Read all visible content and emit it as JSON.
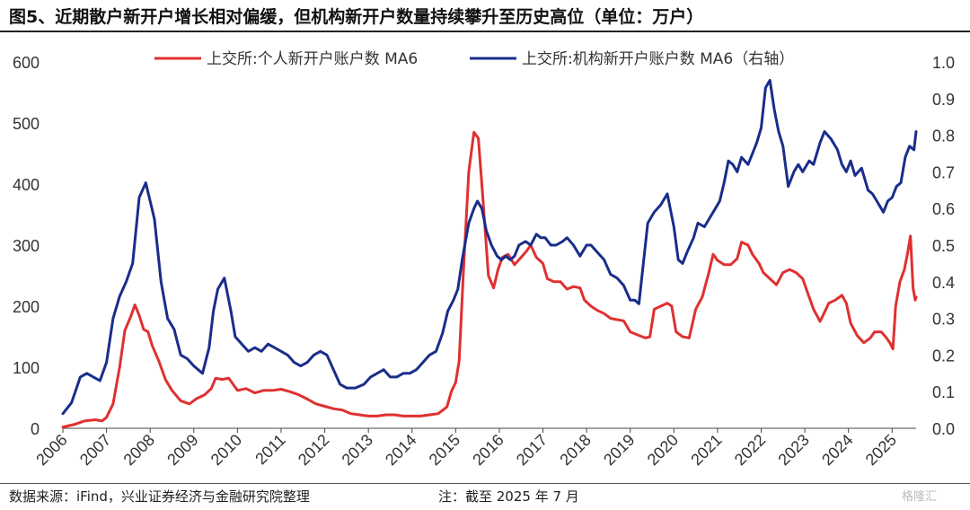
{
  "header": {
    "title": "图5、近期散户新开户增长相对偏缓，但机构新开户数量持续攀升至历史高位（单位：万户）"
  },
  "footer": {
    "source": "数据来源：iFind，兴业证券经济与金融研究院整理",
    "note": "注：截至 2025 年 7 月",
    "watermark": "格隆汇"
  },
  "colors": {
    "retail": "#e03030",
    "institution": "#1a2d8a",
    "axis": "#444444"
  },
  "chart_data": {
    "type": "line",
    "title": "",
    "xlabel": "",
    "ylabel": "",
    "x_ticks": [
      "2006",
      "2007",
      "2008",
      "2009",
      "2010",
      "2011",
      "2012",
      "2013",
      "2014",
      "2015",
      "2016",
      "2017",
      "2018",
      "2019",
      "2020",
      "2021",
      "2022",
      "2023",
      "2024",
      "2025"
    ],
    "x_range": [
      2006.0,
      2025.55
    ],
    "y_left": {
      "ticks": [
        "0",
        "100",
        "200",
        "300",
        "400",
        "500",
        "600"
      ],
      "range": [
        0,
        600
      ]
    },
    "y_right": {
      "ticks": [
        "0.0",
        "0.1",
        "0.2",
        "0.3",
        "0.4",
        "0.5",
        "0.6",
        "0.7",
        "0.8",
        "0.9",
        "1.0"
      ],
      "range": [
        0,
        1.0
      ]
    },
    "legend_position": "top",
    "series": [
      {
        "name": "上交所:个人新开户账户数 MA6",
        "axis": "left",
        "color": "#e03030",
        "points": [
          [
            2006.0,
            2
          ],
          [
            2006.25,
            6
          ],
          [
            2006.5,
            12
          ],
          [
            2006.75,
            14
          ],
          [
            2006.9,
            12
          ],
          [
            2007.0,
            18
          ],
          [
            2007.15,
            40
          ],
          [
            2007.3,
            100
          ],
          [
            2007.42,
            160
          ],
          [
            2007.55,
            182
          ],
          [
            2007.65,
            202
          ],
          [
            2007.75,
            185
          ],
          [
            2007.85,
            162
          ],
          [
            2007.95,
            158
          ],
          [
            2008.05,
            135
          ],
          [
            2008.2,
            110
          ],
          [
            2008.35,
            80
          ],
          [
            2008.5,
            62
          ],
          [
            2008.7,
            45
          ],
          [
            2008.9,
            40
          ],
          [
            2009.05,
            48
          ],
          [
            2009.25,
            55
          ],
          [
            2009.4,
            65
          ],
          [
            2009.5,
            82
          ],
          [
            2009.65,
            80
          ],
          [
            2009.8,
            82
          ],
          [
            2010.0,
            62
          ],
          [
            2010.2,
            65
          ],
          [
            2010.4,
            58
          ],
          [
            2010.6,
            62
          ],
          [
            2010.8,
            62
          ],
          [
            2011.0,
            64
          ],
          [
            2011.2,
            60
          ],
          [
            2011.4,
            55
          ],
          [
            2011.6,
            48
          ],
          [
            2011.8,
            40
          ],
          [
            2012.0,
            36
          ],
          [
            2012.2,
            32
          ],
          [
            2012.4,
            30
          ],
          [
            2012.6,
            24
          ],
          [
            2012.8,
            22
          ],
          [
            2013.0,
            20
          ],
          [
            2013.2,
            20
          ],
          [
            2013.4,
            22
          ],
          [
            2013.6,
            22
          ],
          [
            2013.8,
            20
          ],
          [
            2014.0,
            20
          ],
          [
            2014.2,
            20
          ],
          [
            2014.4,
            22
          ],
          [
            2014.6,
            24
          ],
          [
            2014.8,
            35
          ],
          [
            2014.9,
            60
          ],
          [
            2015.0,
            75
          ],
          [
            2015.08,
            110
          ],
          [
            2015.18,
            260
          ],
          [
            2015.3,
            420
          ],
          [
            2015.42,
            485
          ],
          [
            2015.52,
            475
          ],
          [
            2015.62,
            380
          ],
          [
            2015.75,
            250
          ],
          [
            2015.87,
            230
          ],
          [
            2015.97,
            260
          ],
          [
            2016.07,
            280
          ],
          [
            2016.2,
            285
          ],
          [
            2016.35,
            268
          ],
          [
            2016.5,
            280
          ],
          [
            2016.62,
            290
          ],
          [
            2016.72,
            300
          ],
          [
            2016.85,
            280
          ],
          [
            2017.0,
            270
          ],
          [
            2017.1,
            245
          ],
          [
            2017.25,
            240
          ],
          [
            2017.4,
            240
          ],
          [
            2017.55,
            228
          ],
          [
            2017.7,
            232
          ],
          [
            2017.85,
            230
          ],
          [
            2017.95,
            210
          ],
          [
            2018.1,
            200
          ],
          [
            2018.25,
            193
          ],
          [
            2018.4,
            188
          ],
          [
            2018.55,
            180
          ],
          [
            2018.7,
            178
          ],
          [
            2018.85,
            176
          ],
          [
            2019.0,
            158
          ],
          [
            2019.2,
            152
          ],
          [
            2019.35,
            148
          ],
          [
            2019.45,
            150
          ],
          [
            2019.55,
            195
          ],
          [
            2019.7,
            200
          ],
          [
            2019.85,
            205
          ],
          [
            2019.95,
            200
          ],
          [
            2020.05,
            158
          ],
          [
            2020.2,
            150
          ],
          [
            2020.35,
            148
          ],
          [
            2020.5,
            195
          ],
          [
            2020.65,
            215
          ],
          [
            2020.8,
            255
          ],
          [
            2020.9,
            285
          ],
          [
            2021.0,
            275
          ],
          [
            2021.15,
            268
          ],
          [
            2021.3,
            268
          ],
          [
            2021.45,
            278
          ],
          [
            2021.55,
            305
          ],
          [
            2021.7,
            300
          ],
          [
            2021.8,
            285
          ],
          [
            2021.95,
            270
          ],
          [
            2022.05,
            255
          ],
          [
            2022.2,
            245
          ],
          [
            2022.35,
            235
          ],
          [
            2022.5,
            255
          ],
          [
            2022.65,
            260
          ],
          [
            2022.8,
            255
          ],
          [
            2022.95,
            245
          ],
          [
            2023.05,
            225
          ],
          [
            2023.2,
            195
          ],
          [
            2023.35,
            175
          ],
          [
            2023.45,
            190
          ],
          [
            2023.55,
            205
          ],
          [
            2023.7,
            210
          ],
          [
            2023.85,
            218
          ],
          [
            2023.95,
            205
          ],
          [
            2024.05,
            172
          ],
          [
            2024.2,
            152
          ],
          [
            2024.35,
            140
          ],
          [
            2024.5,
            148
          ],
          [
            2024.6,
            158
          ],
          [
            2024.75,
            158
          ],
          [
            2024.85,
            150
          ],
          [
            2024.95,
            140
          ],
          [
            2025.02,
            130
          ],
          [
            2025.08,
            200
          ],
          [
            2025.18,
            240
          ],
          [
            2025.28,
            260
          ],
          [
            2025.35,
            285
          ],
          [
            2025.42,
            315
          ],
          [
            2025.48,
            230
          ],
          [
            2025.53,
            210
          ],
          [
            2025.55,
            215
          ]
        ]
      },
      {
        "name": "上交所:机构新开户账户数 MA6（右轴）",
        "axis": "right",
        "color": "#1a2d8a",
        "points": [
          [
            2006.0,
            0.04
          ],
          [
            2006.2,
            0.07
          ],
          [
            2006.4,
            0.14
          ],
          [
            2006.55,
            0.15
          ],
          [
            2006.7,
            0.14
          ],
          [
            2006.85,
            0.13
          ],
          [
            2007.0,
            0.18
          ],
          [
            2007.15,
            0.3
          ],
          [
            2007.3,
            0.36
          ],
          [
            2007.45,
            0.4
          ],
          [
            2007.6,
            0.45
          ],
          [
            2007.75,
            0.63
          ],
          [
            2007.9,
            0.67
          ],
          [
            2008.0,
            0.62
          ],
          [
            2008.1,
            0.57
          ],
          [
            2008.25,
            0.4
          ],
          [
            2008.4,
            0.3
          ],
          [
            2008.55,
            0.27
          ],
          [
            2008.7,
            0.2
          ],
          [
            2008.85,
            0.19
          ],
          [
            2009.0,
            0.17
          ],
          [
            2009.2,
            0.15
          ],
          [
            2009.35,
            0.22
          ],
          [
            2009.45,
            0.32
          ],
          [
            2009.55,
            0.38
          ],
          [
            2009.7,
            0.41
          ],
          [
            2009.85,
            0.32
          ],
          [
            2009.95,
            0.25
          ],
          [
            2010.1,
            0.23
          ],
          [
            2010.25,
            0.21
          ],
          [
            2010.4,
            0.22
          ],
          [
            2010.55,
            0.21
          ],
          [
            2010.7,
            0.23
          ],
          [
            2010.85,
            0.22
          ],
          [
            2011.0,
            0.21
          ],
          [
            2011.15,
            0.2
          ],
          [
            2011.3,
            0.18
          ],
          [
            2011.45,
            0.17
          ],
          [
            2011.6,
            0.18
          ],
          [
            2011.75,
            0.2
          ],
          [
            2011.9,
            0.21
          ],
          [
            2012.05,
            0.2
          ],
          [
            2012.2,
            0.16
          ],
          [
            2012.35,
            0.12
          ],
          [
            2012.5,
            0.11
          ],
          [
            2012.7,
            0.11
          ],
          [
            2012.9,
            0.12
          ],
          [
            2013.05,
            0.14
          ],
          [
            2013.2,
            0.15
          ],
          [
            2013.35,
            0.16
          ],
          [
            2013.5,
            0.14
          ],
          [
            2013.65,
            0.14
          ],
          [
            2013.8,
            0.15
          ],
          [
            2013.95,
            0.15
          ],
          [
            2014.1,
            0.16
          ],
          [
            2014.25,
            0.18
          ],
          [
            2014.4,
            0.2
          ],
          [
            2014.55,
            0.21
          ],
          [
            2014.7,
            0.26
          ],
          [
            2014.82,
            0.32
          ],
          [
            2014.95,
            0.35
          ],
          [
            2015.05,
            0.38
          ],
          [
            2015.15,
            0.46
          ],
          [
            2015.3,
            0.56
          ],
          [
            2015.42,
            0.6
          ],
          [
            2015.5,
            0.62
          ],
          [
            2015.6,
            0.6
          ],
          [
            2015.7,
            0.54
          ],
          [
            2015.82,
            0.5
          ],
          [
            2015.95,
            0.47
          ],
          [
            2016.05,
            0.46
          ],
          [
            2016.15,
            0.47
          ],
          [
            2016.25,
            0.46
          ],
          [
            2016.35,
            0.47
          ],
          [
            2016.45,
            0.5
          ],
          [
            2016.6,
            0.51
          ],
          [
            2016.72,
            0.5
          ],
          [
            2016.85,
            0.53
          ],
          [
            2016.95,
            0.52
          ],
          [
            2017.05,
            0.52
          ],
          [
            2017.18,
            0.5
          ],
          [
            2017.3,
            0.5
          ],
          [
            2017.45,
            0.51
          ],
          [
            2017.55,
            0.52
          ],
          [
            2017.7,
            0.5
          ],
          [
            2017.85,
            0.47
          ],
          [
            2018.0,
            0.5
          ],
          [
            2018.1,
            0.5
          ],
          [
            2018.25,
            0.48
          ],
          [
            2018.4,
            0.46
          ],
          [
            2018.55,
            0.42
          ],
          [
            2018.7,
            0.41
          ],
          [
            2018.85,
            0.39
          ],
          [
            2019.0,
            0.35
          ],
          [
            2019.1,
            0.35
          ],
          [
            2019.2,
            0.34
          ],
          [
            2019.3,
            0.45
          ],
          [
            2019.4,
            0.56
          ],
          [
            2019.55,
            0.59
          ],
          [
            2019.7,
            0.61
          ],
          [
            2019.85,
            0.64
          ],
          [
            2020.0,
            0.55
          ],
          [
            2020.1,
            0.46
          ],
          [
            2020.2,
            0.45
          ],
          [
            2020.3,
            0.48
          ],
          [
            2020.45,
            0.52
          ],
          [
            2020.55,
            0.56
          ],
          [
            2020.7,
            0.55
          ],
          [
            2020.85,
            0.58
          ],
          [
            2020.95,
            0.6
          ],
          [
            2021.05,
            0.62
          ],
          [
            2021.15,
            0.67
          ],
          [
            2021.25,
            0.73
          ],
          [
            2021.35,
            0.72
          ],
          [
            2021.45,
            0.7
          ],
          [
            2021.55,
            0.74
          ],
          [
            2021.7,
            0.72
          ],
          [
            2021.8,
            0.75
          ],
          [
            2021.9,
            0.78
          ],
          [
            2022.0,
            0.82
          ],
          [
            2022.1,
            0.93
          ],
          [
            2022.2,
            0.95
          ],
          [
            2022.3,
            0.87
          ],
          [
            2022.4,
            0.81
          ],
          [
            2022.5,
            0.77
          ],
          [
            2022.62,
            0.66
          ],
          [
            2022.75,
            0.7
          ],
          [
            2022.85,
            0.72
          ],
          [
            2022.95,
            0.7
          ],
          [
            2023.1,
            0.73
          ],
          [
            2023.2,
            0.72
          ],
          [
            2023.35,
            0.78
          ],
          [
            2023.45,
            0.81
          ],
          [
            2023.6,
            0.79
          ],
          [
            2023.75,
            0.76
          ],
          [
            2023.85,
            0.72
          ],
          [
            2023.95,
            0.7
          ],
          [
            2024.05,
            0.73
          ],
          [
            2024.15,
            0.69
          ],
          [
            2024.3,
            0.71
          ],
          [
            2024.45,
            0.65
          ],
          [
            2024.55,
            0.64
          ],
          [
            2024.65,
            0.62
          ],
          [
            2024.8,
            0.59
          ],
          [
            2024.9,
            0.62
          ],
          [
            2025.0,
            0.63
          ],
          [
            2025.1,
            0.66
          ],
          [
            2025.2,
            0.67
          ],
          [
            2025.3,
            0.74
          ],
          [
            2025.4,
            0.77
          ],
          [
            2025.5,
            0.76
          ],
          [
            2025.55,
            0.81
          ]
        ]
      }
    ]
  }
}
